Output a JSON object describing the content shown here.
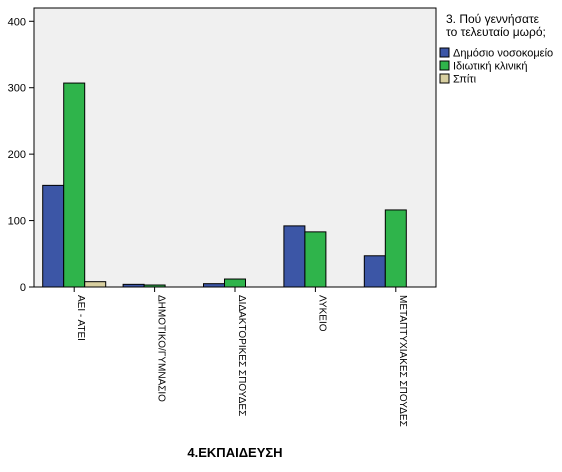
{
  "chart_data": {
    "type": "bar",
    "title": "",
    "xlabel": "4.ΕΚΠΑΙΔΕΥΣΗ",
    "ylabel": "",
    "ylim": [
      0,
      420
    ],
    "yticks": [
      0,
      100,
      200,
      300,
      400
    ],
    "grid": false,
    "legend_position": "top-right",
    "legend_title_lines": [
      "3. Πού γεννήσατε",
      "το τελευταίο μωρό;"
    ],
    "categories": [
      "ΑΕΙ - ΑΤΕΙ",
      "ΔΗΜΟΤΙΚΟ/ΓΥΜΝΑΣΙΟ",
      "ΔΙΔΑΚΤΟΡΙΚΕΣ ΣΠΟΥΔΕΣ",
      "ΛΥΚΕΙΟ",
      "ΜΕΤΑΠΤΥΧΙΑΚΕΣ ΣΠΟΥΔΕΣ"
    ],
    "series": [
      {
        "name": "Δημόσιο νοσοκομείο",
        "color": "#3c56a6",
        "values": [
          153,
          4,
          5,
          92,
          47
        ]
      },
      {
        "name": "Ιδιωτική κλινική",
        "color": "#2fb44b",
        "values": [
          307,
          3,
          12,
          83,
          116
        ]
      },
      {
        "name": "Σπίτι",
        "color": "#d8cfa0",
        "values": [
          8,
          0,
          0,
          0,
          0
        ]
      }
    ]
  }
}
